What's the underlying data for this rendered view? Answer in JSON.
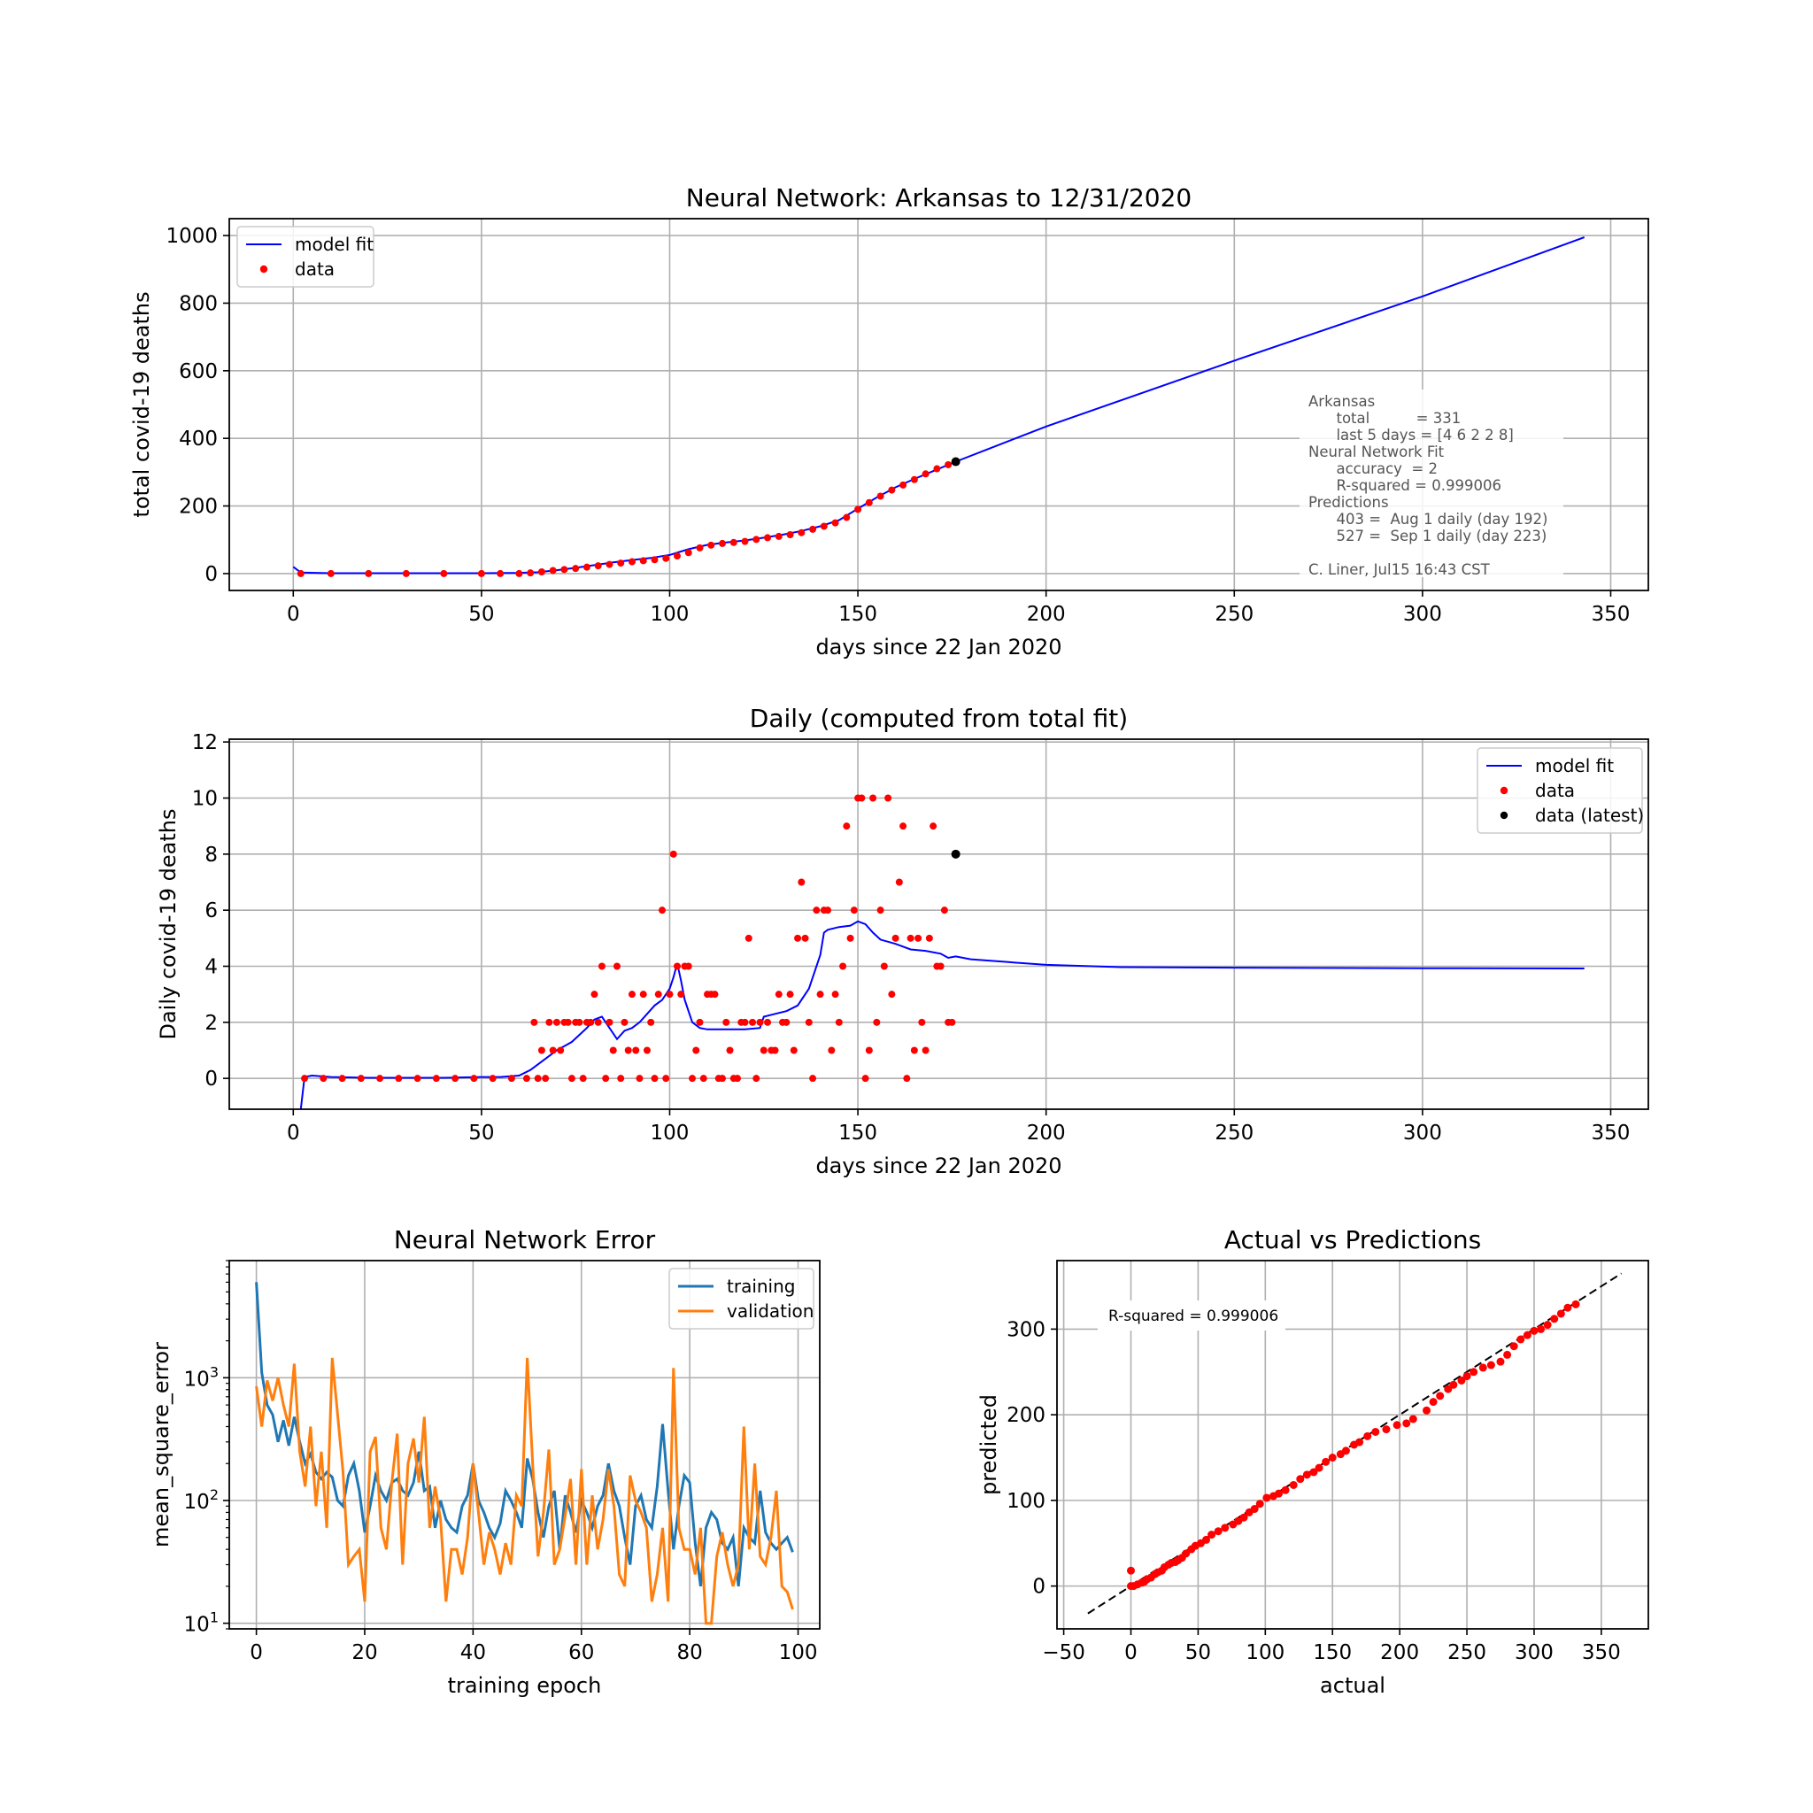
{
  "chart_data": [
    {
      "id": "total",
      "type": "line",
      "title": "Neural Network: Arkansas to 12/31/2020",
      "xlabel": "days since 22 Jan 2020",
      "ylabel": "total covid-19 deaths",
      "xlim": [
        -17,
        360
      ],
      "ylim": [
        -50,
        1050
      ],
      "xticks": [
        0,
        50,
        100,
        150,
        200,
        250,
        300,
        350
      ],
      "yticks": [
        0,
        200,
        400,
        600,
        800,
        1000
      ],
      "grid": true,
      "legend_position": "upper-left",
      "series": [
        {
          "name": "model fit",
          "kind": "line",
          "color": "#0000ff",
          "x": [
            0,
            2,
            10,
            20,
            30,
            40,
            50,
            60,
            65,
            70,
            75,
            80,
            85,
            90,
            95,
            100,
            105,
            110,
            115,
            120,
            125,
            130,
            135,
            140,
            145,
            150,
            155,
            160,
            165,
            170,
            176,
            200,
            250,
            300,
            343
          ],
          "y": [
            20,
            3,
            1,
            1,
            1,
            1,
            1,
            2,
            4,
            10,
            17,
            25,
            33,
            40,
            46,
            55,
            72,
            85,
            92,
            98,
            106,
            115,
            126,
            140,
            158,
            192,
            225,
            255,
            280,
            303,
            331,
            435,
            630,
            820,
            995
          ]
        },
        {
          "name": "data",
          "kind": "scatter",
          "color": "#ff0000",
          "x": [
            2,
            10,
            20,
            30,
            40,
            50,
            55,
            60,
            63,
            66,
            69,
            72,
            75,
            78,
            81,
            84,
            87,
            90,
            93,
            96,
            99,
            102,
            105,
            108,
            111,
            114,
            117,
            120,
            123,
            126,
            129,
            132,
            135,
            138,
            141,
            144,
            147,
            150,
            153,
            156,
            159,
            162,
            165,
            168,
            171,
            174
          ],
          "y": [
            0,
            0,
            0,
            0,
            0,
            0,
            0,
            0,
            2,
            5,
            9,
            12,
            15,
            19,
            23,
            27,
            31,
            35,
            38,
            41,
            45,
            52,
            62,
            76,
            84,
            89,
            92,
            95,
            101,
            106,
            110,
            115,
            121,
            131,
            140,
            150,
            166,
            190,
            210,
            229,
            247,
            262,
            278,
            295,
            310,
            322
          ]
        },
        {
          "name": "",
          "kind": "scatter",
          "color": "#000000",
          "x": [
            176
          ],
          "y": [
            331
          ]
        }
      ],
      "annotation": [
        "Arkansas",
        "      total          = 331",
        "      last 5 days = [4 6 2 2 8]",
        "Neural Network Fit",
        "      accuracy  = 2",
        "      R-squared = 0.999006",
        "Predictions",
        "      403 =  Aug 1 daily (day 192)",
        "      527 =  Sep 1 daily (day 223)",
        "",
        "C. Liner, Jul15 16:43 CST"
      ]
    },
    {
      "id": "daily",
      "type": "line",
      "title": "Daily (computed from total fit)",
      "xlabel": "days since 22 Jan 2020",
      "ylabel": "Daily covid-19 deaths",
      "xlim": [
        -17,
        360
      ],
      "ylim": [
        -1.1,
        12.1
      ],
      "xticks": [
        0,
        50,
        100,
        150,
        200,
        250,
        300,
        350
      ],
      "yticks": [
        0,
        2,
        4,
        6,
        8,
        10,
        12
      ],
      "grid": true,
      "legend_position": "upper-right",
      "series": [
        {
          "name": "model fit",
          "kind": "line",
          "color": "#0000ff",
          "x": [
            2,
            3,
            5,
            10,
            20,
            30,
            40,
            50,
            55,
            60,
            63,
            66,
            70,
            74,
            78,
            80,
            82,
            84,
            86,
            88,
            90,
            92,
            94,
            96,
            98,
            100,
            101,
            102,
            103,
            104,
            106,
            108,
            110,
            115,
            120,
            124,
            125,
            128,
            131,
            134,
            137,
            140,
            141,
            142,
            145,
            148,
            150,
            152,
            154,
            156,
            160,
            164,
            168,
            172,
            174,
            176,
            180,
            190,
            200,
            220,
            250,
            300,
            343
          ],
          "y": [
            -1.1,
            0.05,
            0.1,
            0.05,
            0.02,
            0.02,
            0.02,
            0.05,
            0.05,
            0.1,
            0.3,
            0.6,
            1.0,
            1.3,
            1.8,
            2.1,
            2.2,
            1.8,
            1.4,
            1.7,
            1.8,
            2.0,
            2.3,
            2.6,
            2.8,
            3.2,
            3.6,
            4.1,
            3.5,
            2.8,
            2.0,
            1.8,
            1.75,
            1.75,
            1.75,
            1.8,
            2.2,
            2.3,
            2.4,
            2.6,
            3.2,
            4.4,
            5.2,
            5.3,
            5.4,
            5.45,
            5.6,
            5.5,
            5.2,
            4.95,
            4.8,
            4.6,
            4.55,
            4.45,
            4.3,
            4.35,
            4.25,
            4.15,
            4.05,
            3.97,
            3.95,
            3.93,
            3.92
          ]
        },
        {
          "name": "data",
          "kind": "scatter",
          "color": "#ff0000",
          "x": [
            3,
            8,
            13,
            18,
            23,
            28,
            33,
            38,
            43,
            48,
            53,
            58,
            62,
            64,
            65,
            66,
            67,
            68,
            69,
            70,
            71,
            72,
            73,
            74,
            75,
            76,
            77,
            78,
            79,
            80,
            81,
            82,
            83,
            84,
            85,
            86,
            87,
            88,
            89,
            90,
            91,
            92,
            93,
            94,
            95,
            96,
            97,
            98,
            99,
            100,
            101,
            102,
            103,
            104,
            105,
            106,
            107,
            108,
            109,
            110,
            111,
            112,
            113,
            114,
            115,
            116,
            117,
            118,
            119,
            120,
            121,
            122,
            123,
            124,
            125,
            126,
            127,
            128,
            129,
            130,
            131,
            132,
            133,
            134,
            135,
            136,
            137,
            138,
            139,
            140,
            141,
            142,
            143,
            144,
            145,
            146,
            147,
            148,
            149,
            150,
            151,
            152,
            153,
            154,
            155,
            156,
            157,
            158,
            159,
            160,
            161,
            162,
            163,
            164,
            165,
            166,
            167,
            168,
            169,
            170,
            171,
            172,
            173,
            174,
            175
          ],
          "y": [
            0,
            0,
            0,
            0,
            0,
            0,
            0,
            0,
            0,
            0,
            0,
            0,
            0,
            2,
            0,
            1,
            0,
            2,
            1,
            2,
            1,
            2,
            2,
            0,
            2,
            2,
            0,
            2,
            2,
            3,
            2,
            4,
            0,
            2,
            1,
            4,
            0,
            2,
            1,
            3,
            1,
            0,
            3,
            1,
            2,
            0,
            3,
            6,
            0,
            3,
            8,
            4,
            3,
            4,
            4,
            0,
            1,
            2,
            0,
            3,
            3,
            3,
            0,
            0,
            2,
            1,
            0,
            0,
            2,
            2,
            5,
            2,
            0,
            2,
            1,
            2,
            1,
            1,
            3,
            2,
            2,
            3,
            1,
            5,
            7,
            5,
            2,
            0,
            6,
            3,
            6,
            6,
            1,
            3,
            2,
            4,
            9,
            5,
            6,
            10,
            10,
            0,
            1,
            10,
            2,
            6,
            4,
            10,
            3,
            5,
            7,
            9,
            0,
            5,
            1,
            5,
            2,
            1,
            5,
            9,
            4,
            4,
            6,
            2,
            2
          ]
        },
        {
          "name": "data (latest)",
          "kind": "scatter",
          "color": "#000000",
          "x": [
            176
          ],
          "y": [
            8
          ]
        }
      ]
    },
    {
      "id": "error",
      "type": "line",
      "title": "Neural Network Error",
      "xlabel": "training epoch",
      "ylabel": "mean_square_error",
      "xlim": [
        -5,
        104
      ],
      "ylim": [
        9,
        9000
      ],
      "yscale": "log",
      "xticks": [
        0,
        20,
        40,
        60,
        80,
        100
      ],
      "yticks": [
        {
          "value": 10,
          "base": "10",
          "exp": "1"
        },
        {
          "value": 100,
          "base": "10",
          "exp": "2"
        },
        {
          "value": 1000,
          "base": "10",
          "exp": "3"
        }
      ],
      "grid": true,
      "legend_position": "upper-right",
      "series": [
        {
          "name": "training",
          "color": "#1f77b4",
          "values": [
            6000,
            1100,
            600,
            500,
            300,
            450,
            280,
            480,
            300,
            200,
            240,
            170,
            150,
            170,
            155,
            100,
            90,
            160,
            200,
            120,
            55,
            90,
            160,
            120,
            100,
            140,
            150,
            120,
            110,
            140,
            250,
            120,
            130,
            60,
            100,
            70,
            60,
            55,
            90,
            110,
            200,
            100,
            80,
            60,
            50,
            65,
            120,
            100,
            80,
            60,
            220,
            150,
            80,
            50,
            90,
            120,
            40,
            110,
            80,
            55,
            100,
            80,
            60,
            90,
            110,
            200,
            120,
            90,
            50,
            30,
            90,
            110,
            70,
            60,
            130,
            420,
            120,
            40,
            90,
            160,
            140,
            45,
            20,
            60,
            80,
            70,
            45,
            40,
            50,
            20,
            60,
            50,
            45,
            120,
            55,
            45,
            40,
            45,
            50,
            38
          ]
        },
        {
          "name": "validation",
          "color": "#ff7f0e",
          "values": [
            850,
            400,
            950,
            650,
            1000,
            600,
            400,
            1300,
            250,
            130,
            400,
            90,
            250,
            60,
            1450,
            500,
            170,
            30,
            35,
            40,
            15,
            250,
            330,
            60,
            40,
            140,
            350,
            30,
            200,
            320,
            140,
            480,
            60,
            130,
            70,
            15,
            40,
            40,
            25,
            50,
            200,
            80,
            30,
            55,
            40,
            25,
            45,
            30,
            110,
            90,
            1450,
            200,
            35,
            80,
            260,
            30,
            40,
            75,
            150,
            30,
            180,
            30,
            110,
            40,
            70,
            180,
            90,
            25,
            20,
            160,
            100,
            80,
            60,
            15,
            25,
            60,
            15,
            1200,
            60,
            40,
            40,
            25,
            60,
            10,
            10,
            35,
            55,
            30,
            20,
            30,
            400,
            40,
            200,
            35,
            30,
            50,
            120,
            20,
            18,
            13
          ]
        }
      ]
    },
    {
      "id": "avp",
      "type": "scatter",
      "title": "Actual vs Predictions",
      "xlabel": "actual",
      "ylabel": "predicted",
      "xlim": [
        -55,
        385
      ],
      "ylim": [
        -50,
        380
      ],
      "xticks": [
        -50,
        0,
        50,
        100,
        150,
        200,
        250,
        300,
        350
      ],
      "yticks": [
        0,
        100,
        200,
        300
      ],
      "grid": true,
      "annotation": "R-squared = 0.999006",
      "reference_line": {
        "x": [
          -32,
          365
        ],
        "y": [
          -32,
          365
        ],
        "style": "dashed",
        "color": "#000000"
      },
      "series": [
        {
          "name": "",
          "color": "#ff0000",
          "x": [
            0,
            0,
            2,
            5,
            8,
            10,
            12,
            15,
            18,
            20,
            23,
            25,
            28,
            30,
            33,
            35,
            38,
            41,
            45,
            48,
            52,
            56,
            60,
            65,
            70,
            76,
            80,
            84,
            88,
            92,
            96,
            101,
            106,
            110,
            115,
            121,
            126,
            131,
            136,
            140,
            145,
            150,
            156,
            160,
            166,
            170,
            176,
            182,
            190,
            198,
            205,
            210,
            220,
            225,
            230,
            236,
            240,
            246,
            250,
            255,
            262,
            268,
            275,
            280,
            285,
            290,
            295,
            300,
            305,
            310,
            315,
            320,
            325,
            331
          ],
          "y": [
            18,
            0,
            0,
            2,
            4,
            5,
            8,
            10,
            14,
            16,
            18,
            22,
            25,
            27,
            28,
            30,
            33,
            38,
            43,
            47,
            50,
            54,
            60,
            64,
            68,
            72,
            76,
            80,
            86,
            90,
            96,
            103,
            105,
            108,
            112,
            118,
            125,
            130,
            133,
            138,
            145,
            150,
            154,
            158,
            165,
            168,
            175,
            180,
            183,
            188,
            190,
            195,
            205,
            215,
            222,
            230,
            235,
            240,
            245,
            250,
            255,
            258,
            262,
            270,
            280,
            288,
            293,
            298,
            300,
            305,
            312,
            318,
            325,
            329
          ]
        }
      ]
    }
  ]
}
